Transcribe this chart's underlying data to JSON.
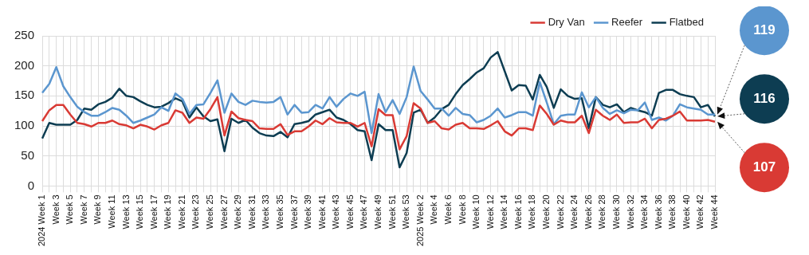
{
  "chart_data": {
    "type": "line",
    "categories": [
      "2024 Week 1",
      null,
      "Week 3",
      null,
      "Week 5",
      null,
      "Week 7",
      null,
      "Week 9",
      null,
      "Week 11",
      null,
      "Week 13",
      null,
      "Week 15",
      null,
      "Week 17",
      null,
      "Week 19",
      null,
      "Week 21",
      null,
      "Week 23",
      null,
      "Week 25",
      null,
      "Week 27",
      null,
      "Week 29",
      null,
      "Week 31",
      null,
      "Week 33",
      null,
      "Week 35",
      null,
      "Week 37",
      null,
      "Week 39",
      null,
      "Week 41",
      null,
      "Week 43",
      null,
      "Week 45",
      null,
      "Week 47",
      null,
      "Week 49",
      null,
      "Week 51",
      null,
      "Week 53",
      null,
      "2025 Week 2",
      null,
      "Week 4",
      null,
      "Week 6",
      null,
      "Week 8",
      null,
      "Week 10",
      null,
      "Week 12",
      null,
      "Week 14",
      null,
      "Week 16",
      null,
      "Week 18",
      null,
      "Week 20",
      null,
      "Week 22",
      null,
      "Week 24",
      null,
      "Week 26",
      null,
      "Week 28",
      null,
      "Week 30",
      null,
      "Week 32",
      null,
      "Week 34",
      null,
      "Week 36",
      null,
      "Week 38",
      null,
      "Week 40",
      null,
      "Week 42",
      null,
      "Week 44"
    ],
    "series": [
      {
        "name": "Dry Van",
        "color": "#d93a34",
        "values": [
          108,
          126,
          135,
          135,
          119,
          105,
          103,
          99,
          105,
          105,
          109,
          103,
          101,
          96,
          102,
          99,
          94,
          101,
          105,
          126,
          122,
          105,
          114,
          112,
          128,
          148,
          84,
          124,
          113,
          110,
          108,
          96,
          95,
          95,
          103,
          85,
          91,
          91,
          99,
          109,
          103,
          113,
          106,
          105,
          105,
          99,
          105,
          66,
          128,
          118,
          118,
          61,
          83,
          138,
          129,
          105,
          108,
          96,
          94,
          102,
          105,
          96,
          96,
          95,
          101,
          108,
          91,
          84,
          96,
          96,
          93,
          134,
          120,
          102,
          109,
          106,
          106,
          117,
          88,
          127,
          117,
          110,
          119,
          105,
          106,
          106,
          112,
          96,
          110,
          112,
          117,
          124,
          109,
          109,
          109,
          110,
          107
        ]
      },
      {
        "name": "Reefer",
        "color": "#5b96cf",
        "values": [
          155,
          170,
          198,
          166,
          148,
          132,
          123,
          117,
          117,
          123,
          130,
          127,
          117,
          105,
          109,
          114,
          119,
          131,
          125,
          154,
          145,
          120,
          135,
          136,
          155,
          176,
          122,
          154,
          140,
          135,
          142,
          140,
          139,
          140,
          148,
          119,
          135,
          122,
          123,
          135,
          129,
          148,
          132,
          145,
          154,
          150,
          157,
          88,
          153,
          123,
          143,
          120,
          148,
          199,
          158,
          144,
          129,
          129,
          117,
          130,
          120,
          118,
          106,
          110,
          117,
          129,
          114,
          118,
          123,
          123,
          117,
          173,
          139,
          103,
          117,
          119,
          119,
          156,
          131,
          148,
          130,
          120,
          126,
          121,
          127,
          126,
          139,
          110,
          114,
          109,
          117,
          136,
          131,
          129,
          127,
          119,
          119
        ]
      },
      {
        "name": "Flatbed",
        "color": "#0d3d52",
        "values": [
          79,
          105,
          102,
          102,
          102,
          110,
          129,
          127,
          136,
          140,
          147,
          162,
          150,
          148,
          141,
          135,
          131,
          132,
          138,
          146,
          141,
          114,
          131,
          116,
          108,
          111,
          58,
          112,
          105,
          110,
          97,
          88,
          84,
          83,
          90,
          81,
          103,
          105,
          108,
          119,
          123,
          127,
          114,
          110,
          103,
          93,
          91,
          43,
          103,
          93,
          93,
          31,
          55,
          122,
          127,
          105,
          114,
          128,
          135,
          153,
          168,
          178,
          189,
          196,
          214,
          223,
          191,
          159,
          168,
          167,
          144,
          185,
          165,
          130,
          161,
          150,
          145,
          146,
          96,
          148,
          135,
          131,
          136,
          123,
          130,
          126,
          123,
          117,
          155,
          160,
          160,
          153,
          150,
          148,
          131,
          135,
          116
        ]
      }
    ],
    "ylim": [
      0,
      250
    ],
    "yticks": [
      0,
      50,
      100,
      150,
      200,
      250
    ],
    "grid": true,
    "legend": "top right",
    "marker": "none",
    "line_style": "solid",
    "annotations": [
      {
        "text": "119",
        "x": "Week 44",
        "y": 119
      },
      {
        "text": "116",
        "x": "Week 44",
        "y": 116
      },
      {
        "text": "107",
        "x": "Week 44",
        "y": 107
      }
    ]
  }
}
